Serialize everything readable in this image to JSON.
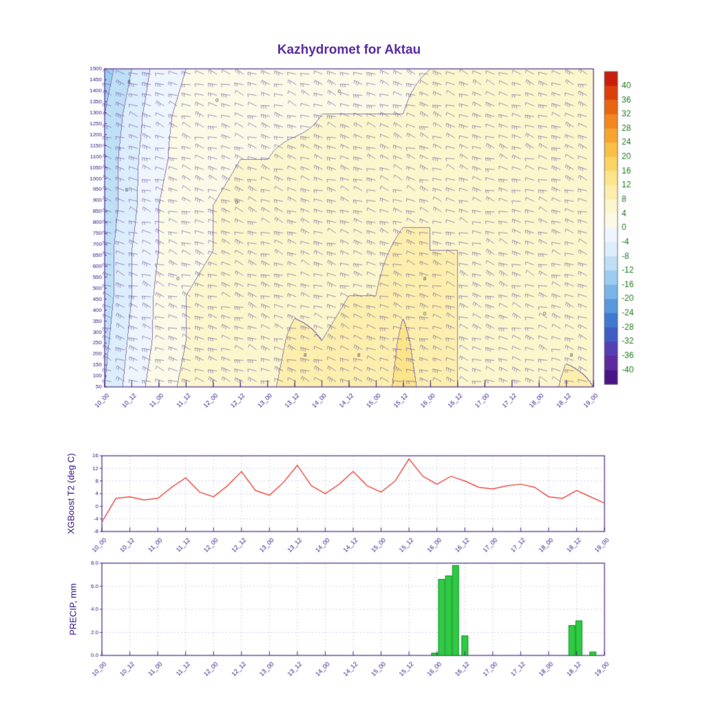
{
  "style": {
    "axis_color": "#4a2a8a",
    "tick_text_color": "#2d1283",
    "title_color": "#5a2ca0",
    "grid_color": "rgba(120,120,200,0.45)",
    "line_color": "#e8291c",
    "bar_fill": "#2ecc40",
    "bar_edge": "#0a8a2a",
    "barb_color": "rgba(95,72,150,0.85)",
    "contour_line_color": "#8a7ab0",
    "contour_label_color": "#444444",
    "colorbar_label_color": "#1f7a1f",
    "palette_cold_to_hot": [
      "#4a1486",
      "#5e2b9e",
      "#5340b5",
      "#3f5cc4",
      "#3f7ad0",
      "#5899dd",
      "#79b5e8",
      "#9ccdf1",
      "#bfdff7",
      "#dcedfb",
      "#eef5fc",
      "#fbfae6",
      "#fcf6cd",
      "#fcefad",
      "#fce489",
      "#fbd465",
      "#fabf47",
      "#f7a52f",
      "#f2871f",
      "#e96511",
      "#db400a",
      "#c81e0e"
    ]
  },
  "time_labels": [
    "10_00",
    "10_12",
    "11_00",
    "11_12",
    "12_00",
    "12_12",
    "13_00",
    "13_12",
    "14_00",
    "14_12",
    "15_00",
    "15_12",
    "16_00",
    "16_12",
    "17_00",
    "17_12",
    "18_00",
    "18_12",
    "19_00"
  ],
  "chart_data": [
    {
      "type": "heatmap",
      "title": "Kazhydromet for Aktau",
      "x_categories": [
        "10_00",
        "10_12",
        "11_00",
        "11_12",
        "12_00",
        "12_12",
        "13_00",
        "13_12",
        "14_00",
        "14_12",
        "15_00",
        "15_12",
        "16_00",
        "16_12",
        "17_00",
        "17_12",
        "18_00",
        "18_12",
        "19_00"
      ],
      "y_ticks": [
        1500,
        1450,
        1400,
        1350,
        1300,
        1250,
        1200,
        1150,
        1100,
        1050,
        1000,
        950,
        900,
        850,
        800,
        750,
        700,
        650,
        600,
        550,
        500,
        450,
        400,
        350,
        300,
        250,
        200,
        150,
        100,
        50
      ],
      "colorbar_ticks": [
        40,
        36,
        32,
        28,
        24,
        20,
        16,
        12,
        8,
        4,
        0,
        -4,
        -8,
        -12,
        -16,
        -20,
        -24,
        -28,
        -32,
        -36,
        -40
      ],
      "bin_step": 4,
      "value_range": [
        -44,
        44
      ],
      "row_pressures_bottom_to_top": [
        50,
        250,
        450,
        650,
        850,
        1050,
        1250,
        1500
      ],
      "values_by_column": [
        [
          -8,
          -9,
          -10,
          -10,
          -11,
          -11,
          -12,
          -14
        ],
        [
          -2,
          -3,
          -4,
          -4,
          -5,
          -5,
          -6,
          -8
        ],
        [
          2,
          1,
          1,
          0,
          0,
          -1,
          -1,
          -2
        ],
        [
          5,
          4,
          4,
          3,
          3,
          2,
          1,
          0
        ],
        [
          6,
          5,
          5,
          4,
          4,
          3,
          2,
          1
        ],
        [
          8,
          6,
          6,
          5,
          5,
          4,
          3,
          1
        ],
        [
          7,
          6,
          6,
          5,
          5,
          4,
          3,
          2
        ],
        [
          10,
          9,
          7,
          6,
          5,
          5,
          3,
          2
        ],
        [
          9,
          8,
          7,
          6,
          6,
          5,
          4,
          2
        ],
        [
          10,
          9,
          8,
          7,
          6,
          5,
          4,
          3
        ],
        [
          9,
          8,
          8,
          7,
          6,
          5,
          4,
          3
        ],
        [
          14,
          13,
          11,
          9,
          7,
          6,
          4,
          3
        ],
        [
          10,
          9,
          9,
          8,
          8,
          7,
          6,
          4
        ],
        [
          8,
          8,
          8,
          8,
          7,
          7,
          6,
          5
        ],
        [
          7,
          7,
          7,
          7,
          6,
          6,
          5,
          4
        ],
        [
          6,
          6,
          6,
          6,
          6,
          7,
          7,
          6
        ],
        [
          5,
          5,
          6,
          6,
          7,
          8,
          8,
          7
        ],
        [
          9,
          7,
          6,
          5,
          6,
          7,
          7,
          6
        ],
        [
          8,
          7,
          6,
          5,
          5,
          6,
          6,
          5
        ]
      ],
      "contour_labels": [
        {
          "text": "8",
          "x": 0.05,
          "y": 0.04
        },
        {
          "text": "0",
          "x": 0.23,
          "y": 0.1
        },
        {
          "text": "0",
          "x": 0.48,
          "y": 0.07
        },
        {
          "text": "8",
          "x": 0.045,
          "y": 0.38
        },
        {
          "text": "0",
          "x": 0.27,
          "y": 0.42
        },
        {
          "text": "0",
          "x": 0.15,
          "y": 0.66
        },
        {
          "text": "8",
          "x": 0.655,
          "y": 0.66
        },
        {
          "text": "0",
          "x": 0.655,
          "y": 0.77
        },
        {
          "text": "0",
          "x": 0.9,
          "y": 0.77
        },
        {
          "text": "8",
          "x": 0.41,
          "y": 0.9
        },
        {
          "text": "8",
          "x": 0.52,
          "y": 0.9
        },
        {
          "text": "8",
          "x": 0.955,
          "y": 0.9
        }
      ],
      "wind": {
        "base_angle_deg": 160,
        "jitter_deg": 34,
        "length": 13,
        "cols": 37,
        "rows": 30
      }
    },
    {
      "type": "line",
      "ylabel": "XGBoost T2 (deg C)",
      "ylim": [
        -8,
        16
      ],
      "yticks": [
        -8,
        -4,
        0,
        4,
        8,
        12,
        16
      ],
      "x_hours_step": 6,
      "x_hours_total": 216,
      "values": [
        -5,
        2.5,
        3,
        2,
        2.5,
        6,
        9,
        4.5,
        3,
        6.5,
        11,
        5,
        3.5,
        7.5,
        13,
        6.5,
        4,
        7,
        11,
        6.5,
        4.5,
        8,
        15,
        9.5,
        7,
        9.5,
        8,
        6,
        5.5,
        6.5,
        7,
        6,
        3,
        2.5,
        5,
        3,
        1
      ]
    },
    {
      "type": "bar",
      "ylabel": "PRECIP, mm",
      "ylim": [
        0,
        8
      ],
      "yticks": [
        0,
        2,
        4,
        6,
        8
      ],
      "x_hours_total": 216,
      "bars": [
        {
          "hour": 143,
          "value": 0.2
        },
        {
          "hour": 146,
          "value": 6.6
        },
        {
          "hour": 149,
          "value": 6.9
        },
        {
          "hour": 152,
          "value": 7.8
        },
        {
          "hour": 156,
          "value": 1.7
        },
        {
          "hour": 202,
          "value": 2.6
        },
        {
          "hour": 205,
          "value": 3.0
        },
        {
          "hour": 211,
          "value": 0.3
        }
      ]
    }
  ]
}
